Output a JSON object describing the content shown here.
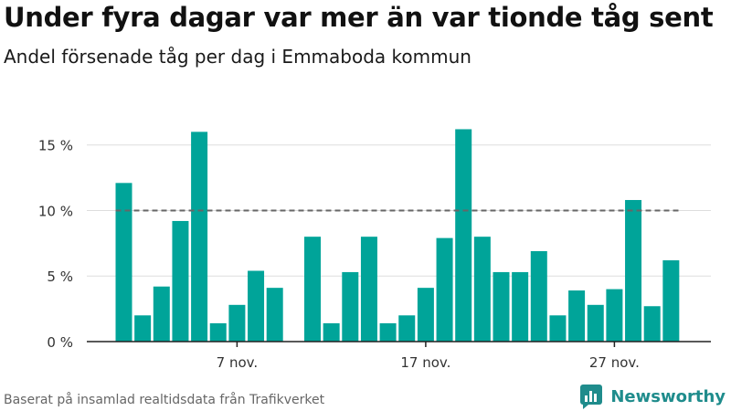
{
  "title": "Under fyra dagar var mer än var tionde tåg sent",
  "subtitle": "Andel försenade tåg per dag i Emmaboda kommun",
  "footer": "Baserat på insamlad realtidsdata från Trafikverket",
  "brand": {
    "name": "Newsworthy",
    "icon": "newsworthy-logo-icon"
  },
  "colors": {
    "bar": "#00a499",
    "reference_line": "#666666",
    "grid": "#dddddd",
    "brand": "#1f8c8c"
  },
  "chart_data": {
    "type": "bar",
    "x_unit": "day",
    "x": [
      "2021-11-01",
      "2021-11-02",
      "2021-11-03",
      "2021-11-04",
      "2021-11-05",
      "2021-11-06",
      "2021-11-07",
      "2021-11-08",
      "2021-11-09",
      "2021-11-10",
      "2021-11-11",
      "2021-11-12",
      "2021-11-13",
      "2021-11-14",
      "2021-11-15",
      "2021-11-16",
      "2021-11-17",
      "2021-11-18",
      "2021-11-19",
      "2021-11-20",
      "2021-11-21",
      "2021-11-22",
      "2021-11-23",
      "2021-11-24",
      "2021-11-25",
      "2021-11-26",
      "2021-11-27",
      "2021-11-28",
      "2021-11-29",
      "2021-11-30"
    ],
    "values": [
      12.1,
      2.0,
      4.2,
      9.2,
      16.0,
      1.4,
      2.8,
      5.4,
      4.1,
      null,
      8.0,
      1.4,
      5.3,
      8.0,
      1.4,
      2.0,
      4.1,
      7.9,
      16.2,
      8.0,
      5.3,
      5.3,
      6.9,
      2.0,
      3.9,
      2.8,
      4.0,
      10.8,
      2.7,
      6.2
    ],
    "ylim": [
      0,
      17
    ],
    "yticks": [
      0,
      5,
      10,
      15
    ],
    "ytick_labels": [
      "0 %",
      "5 %",
      "10 %",
      "15 %"
    ],
    "xticks": [
      "2021-11-07",
      "2021-11-17",
      "2021-11-27"
    ],
    "xtick_labels": [
      "7 nov.",
      "17 nov.",
      "27 nov."
    ],
    "reference_line": {
      "value": 10,
      "style": "dashed"
    },
    "grid": true,
    "legend": "none"
  }
}
